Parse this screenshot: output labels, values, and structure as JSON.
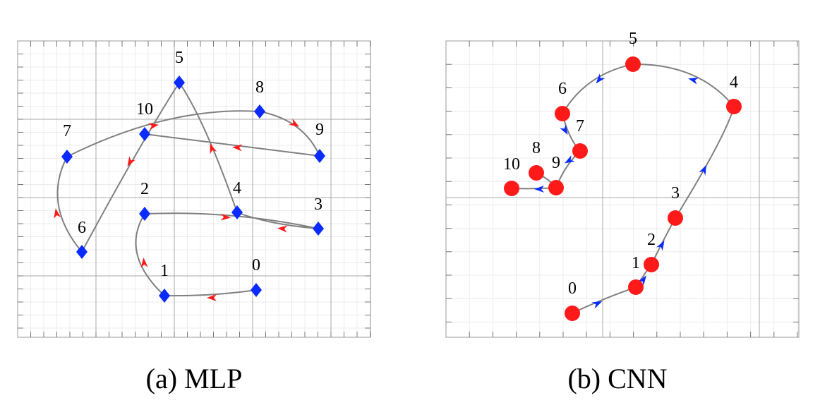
{
  "panels": [
    {
      "id": "mlp",
      "caption": "(a) MLP",
      "marker": "diamond",
      "marker_color": "#0a2bff",
      "arrow_color": "#ff1a1a",
      "line_color": "#808080",
      "nodes": [
        {
          "label": "0"
        },
        {
          "label": "1"
        },
        {
          "label": "2"
        },
        {
          "label": "3"
        },
        {
          "label": "4"
        },
        {
          "label": "5"
        },
        {
          "label": "6"
        },
        {
          "label": "7"
        },
        {
          "label": "8"
        },
        {
          "label": "9"
        },
        {
          "label": "10"
        }
      ]
    },
    {
      "id": "cnn",
      "caption": "(b) CNN",
      "marker": "circle",
      "marker_color": "#ff1a1a",
      "arrow_color": "#0a2bff",
      "line_color": "#808080",
      "nodes": [
        {
          "label": "0"
        },
        {
          "label": "1"
        },
        {
          "label": "2"
        },
        {
          "label": "3"
        },
        {
          "label": "4"
        },
        {
          "label": "5"
        },
        {
          "label": "6"
        },
        {
          "label": "7"
        },
        {
          "label": "8"
        },
        {
          "label": "9"
        },
        {
          "label": "10"
        }
      ]
    }
  ]
}
